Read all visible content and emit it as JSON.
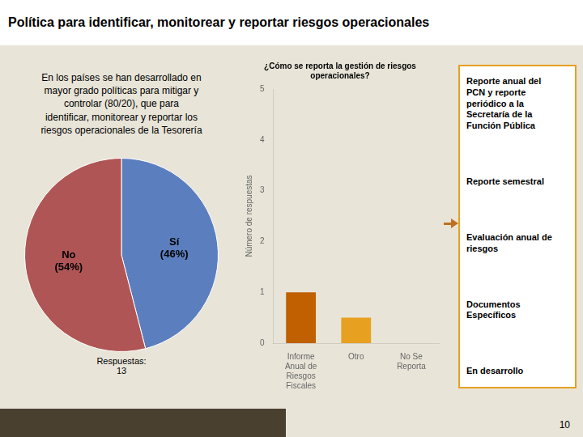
{
  "chart_data": [
    {
      "type": "pie",
      "title": "Política para identificar, monitorear y reportar riesgos operacionales",
      "subtitle": "En los países se han desarrollado en\nmayor grado políticas para mitigar y\ncontrolar (80/20), que para\nidentificar, monitorear y reportar los\nriesgos operacionales  de la Tesorería",
      "categories": [
        "Sí\n(46%)",
        "No\n(54%)"
      ],
      "values": [
        46,
        54
      ],
      "colors": [
        "#5b7fbe",
        "#b05555"
      ],
      "annotations": [
        "Respuestas:\n13",
        "10"
      ]
    },
    {
      "type": "bar",
      "title": "¿Cómo se reporta la gestión de riesgos\noperacionales?",
      "categories": [
        "Informe\nAnual de\nRiesgos\nFiscales",
        "Otro",
        "No Se\nReporta"
      ],
      "values": [
        1,
        0.5,
        0
      ],
      "colors": [
        "#c06000",
        "#e8a020",
        "#c06000"
      ],
      "ylabel": "Número de respuestas",
      "ylim": [
        0,
        5
      ],
      "yticks": [
        0,
        1,
        2,
        3,
        4,
        5
      ],
      "grid": false,
      "annotations": [
        "Reporte anual del\nPCN y reporte\nperiódico a la\nSecretaría de la\nFunción Pública",
        "Reporte semestral",
        "Evaluación anual de\nriesgos",
        "Documentos\nEspecíficos",
        "En desarrollo"
      ]
    }
  ]
}
